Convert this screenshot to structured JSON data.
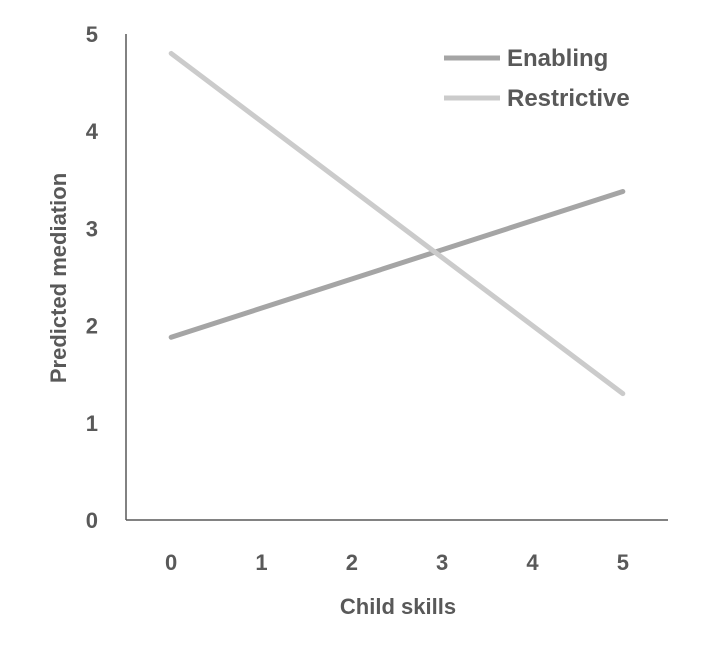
{
  "chart_data": {
    "type": "line",
    "title": "",
    "xlabel": "Child skills",
    "ylabel": "Predicted mediation",
    "x": [
      0,
      5
    ],
    "xticks": [
      0,
      1,
      2,
      3,
      4,
      5
    ],
    "yticks": [
      0,
      1,
      2,
      3,
      4,
      5
    ],
    "xlim": [
      -0.5,
      5.5
    ],
    "ylim": [
      0,
      5
    ],
    "grid": false,
    "legend_position": "top-right",
    "series": [
      {
        "name": "Enabling",
        "values": [
          1.88,
          3.38
        ],
        "color": "#a5a5a5"
      },
      {
        "name": "Restrictive",
        "values": [
          4.8,
          1.3
        ],
        "color": "#cbcbcb"
      }
    ]
  }
}
